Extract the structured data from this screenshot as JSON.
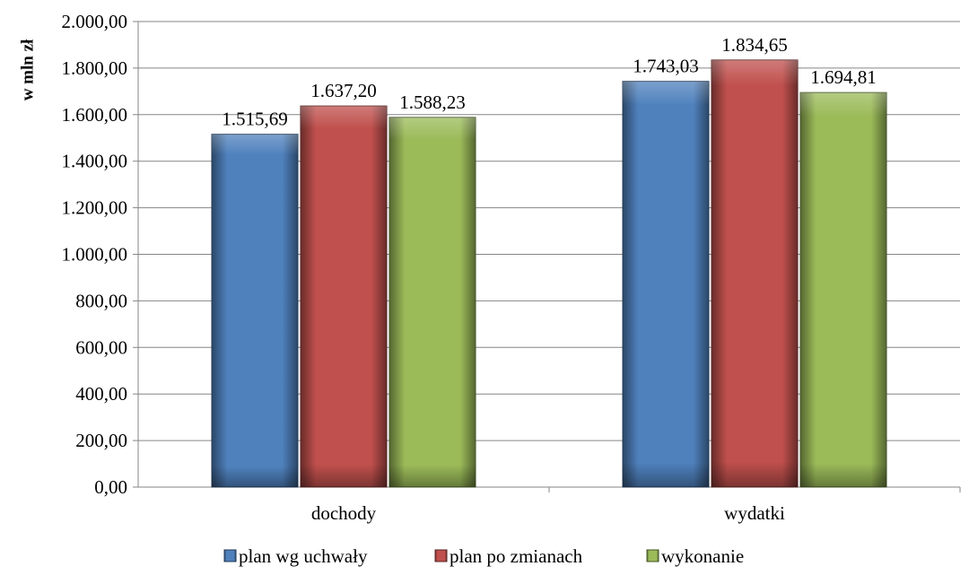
{
  "chart_data": {
    "type": "bar",
    "title": "",
    "xlabel": "",
    "ylabel": "w mln zł",
    "ylim": [
      0,
      2000
    ],
    "ytick_step": 200,
    "yticks": [
      "0,00",
      "200,00",
      "400,00",
      "600,00",
      "800,00",
      "1.000,00",
      "1.200,00",
      "1.400,00",
      "1.600,00",
      "1.800,00",
      "2.000,00"
    ],
    "categories": [
      "dochody",
      "wydatki"
    ],
    "series": [
      {
        "name": "plan wg uchwały",
        "color": "#4f81bd",
        "values": [
          1515.69,
          1743.03
        ],
        "labels": [
          "1.515,69",
          "1.743,03"
        ]
      },
      {
        "name": "plan po zmianach",
        "color": "#c0504d",
        "values": [
          1637.2,
          1834.65
        ],
        "labels": [
          "1.637,20",
          "1.834,65"
        ]
      },
      {
        "name": "wykonanie",
        "color": "#9bbb59",
        "values": [
          1588.23,
          1694.81
        ],
        "labels": [
          "1.588,23",
          "1.694,81"
        ]
      }
    ],
    "grid": true,
    "legend_position": "bottom"
  }
}
